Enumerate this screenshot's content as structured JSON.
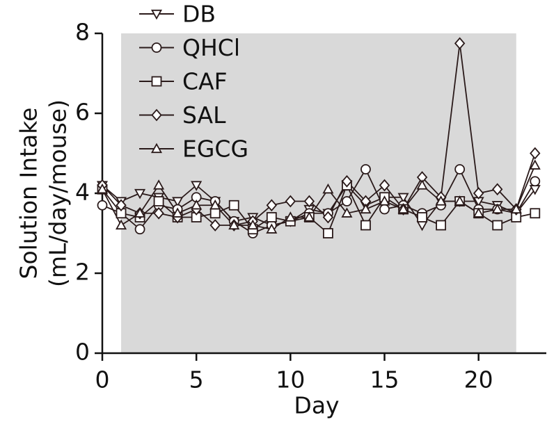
{
  "chart_data": {
    "type": "line",
    "xlabel": "Day",
    "ylabel": [
      "Solution Intake",
      "(mL/day/mouse)"
    ],
    "x": [
      0,
      1,
      2,
      3,
      4,
      5,
      6,
      7,
      8,
      9,
      10,
      11,
      12,
      13,
      14,
      15,
      16,
      17,
      18,
      19,
      20,
      21,
      22,
      23
    ],
    "xlim": [
      0,
      23.6
    ],
    "xticks": [
      0,
      5,
      10,
      15,
      20
    ],
    "ylim": [
      0,
      8
    ],
    "yticks": [
      0,
      2,
      4,
      6,
      8
    ],
    "shaded_region": [
      1,
      22
    ],
    "shade_color": "#d9d9d9",
    "legend": "upper left",
    "series": [
      {
        "name": "DB",
        "color": "#2a1a1a",
        "marker": "triangle-down",
        "values": [
          4.2,
          3.8,
          4.0,
          3.9,
          3.8,
          4.2,
          3.8,
          3.3,
          3.4,
          3.2,
          3.3,
          3.6,
          3.5,
          4.2,
          3.7,
          3.9,
          3.9,
          3.2,
          3.8,
          3.8,
          3.8,
          3.7,
          3.5,
          4.1
        ]
      },
      {
        "name": "QHCl",
        "color": "#2a1a1a",
        "marker": "circle",
        "values": [
          3.7,
          3.5,
          3.1,
          3.7,
          3.6,
          3.9,
          3.8,
          3.3,
          3.0,
          3.2,
          3.3,
          3.5,
          3.5,
          3.8,
          4.6,
          3.6,
          3.7,
          3.5,
          3.7,
          4.6,
          3.6,
          3.6,
          3.5,
          4.3
        ]
      },
      {
        "name": "CAF",
        "color": "#2a1a1a",
        "marker": "square",
        "values": [
          4.1,
          3.5,
          3.4,
          3.8,
          3.4,
          3.4,
          3.5,
          3.7,
          3.1,
          3.4,
          3.3,
          3.4,
          3.0,
          4.2,
          3.2,
          3.9,
          3.6,
          3.4,
          3.2,
          3.8,
          3.5,
          3.2,
          3.4,
          3.5
        ]
      },
      {
        "name": "SAL",
        "color": "#2a1a1a",
        "marker": "diamond",
        "values": [
          4.2,
          3.7,
          3.5,
          3.5,
          3.4,
          3.6,
          3.2,
          3.2,
          3.3,
          3.7,
          3.8,
          3.8,
          3.4,
          4.3,
          3.8,
          4.2,
          3.6,
          4.4,
          3.9,
          7.75,
          4.0,
          4.1,
          3.6,
          5.0
        ]
      },
      {
        "name": "EGCG",
        "color": "#2a1a1a",
        "marker": "triangle-up",
        "values": [
          4.1,
          3.2,
          3.5,
          4.2,
          3.5,
          3.7,
          3.7,
          3.2,
          3.2,
          3.1,
          3.4,
          3.4,
          4.1,
          3.5,
          3.6,
          3.8,
          3.6,
          4.2,
          3.8,
          3.8,
          3.5,
          3.6,
          3.6,
          4.7
        ]
      }
    ]
  }
}
